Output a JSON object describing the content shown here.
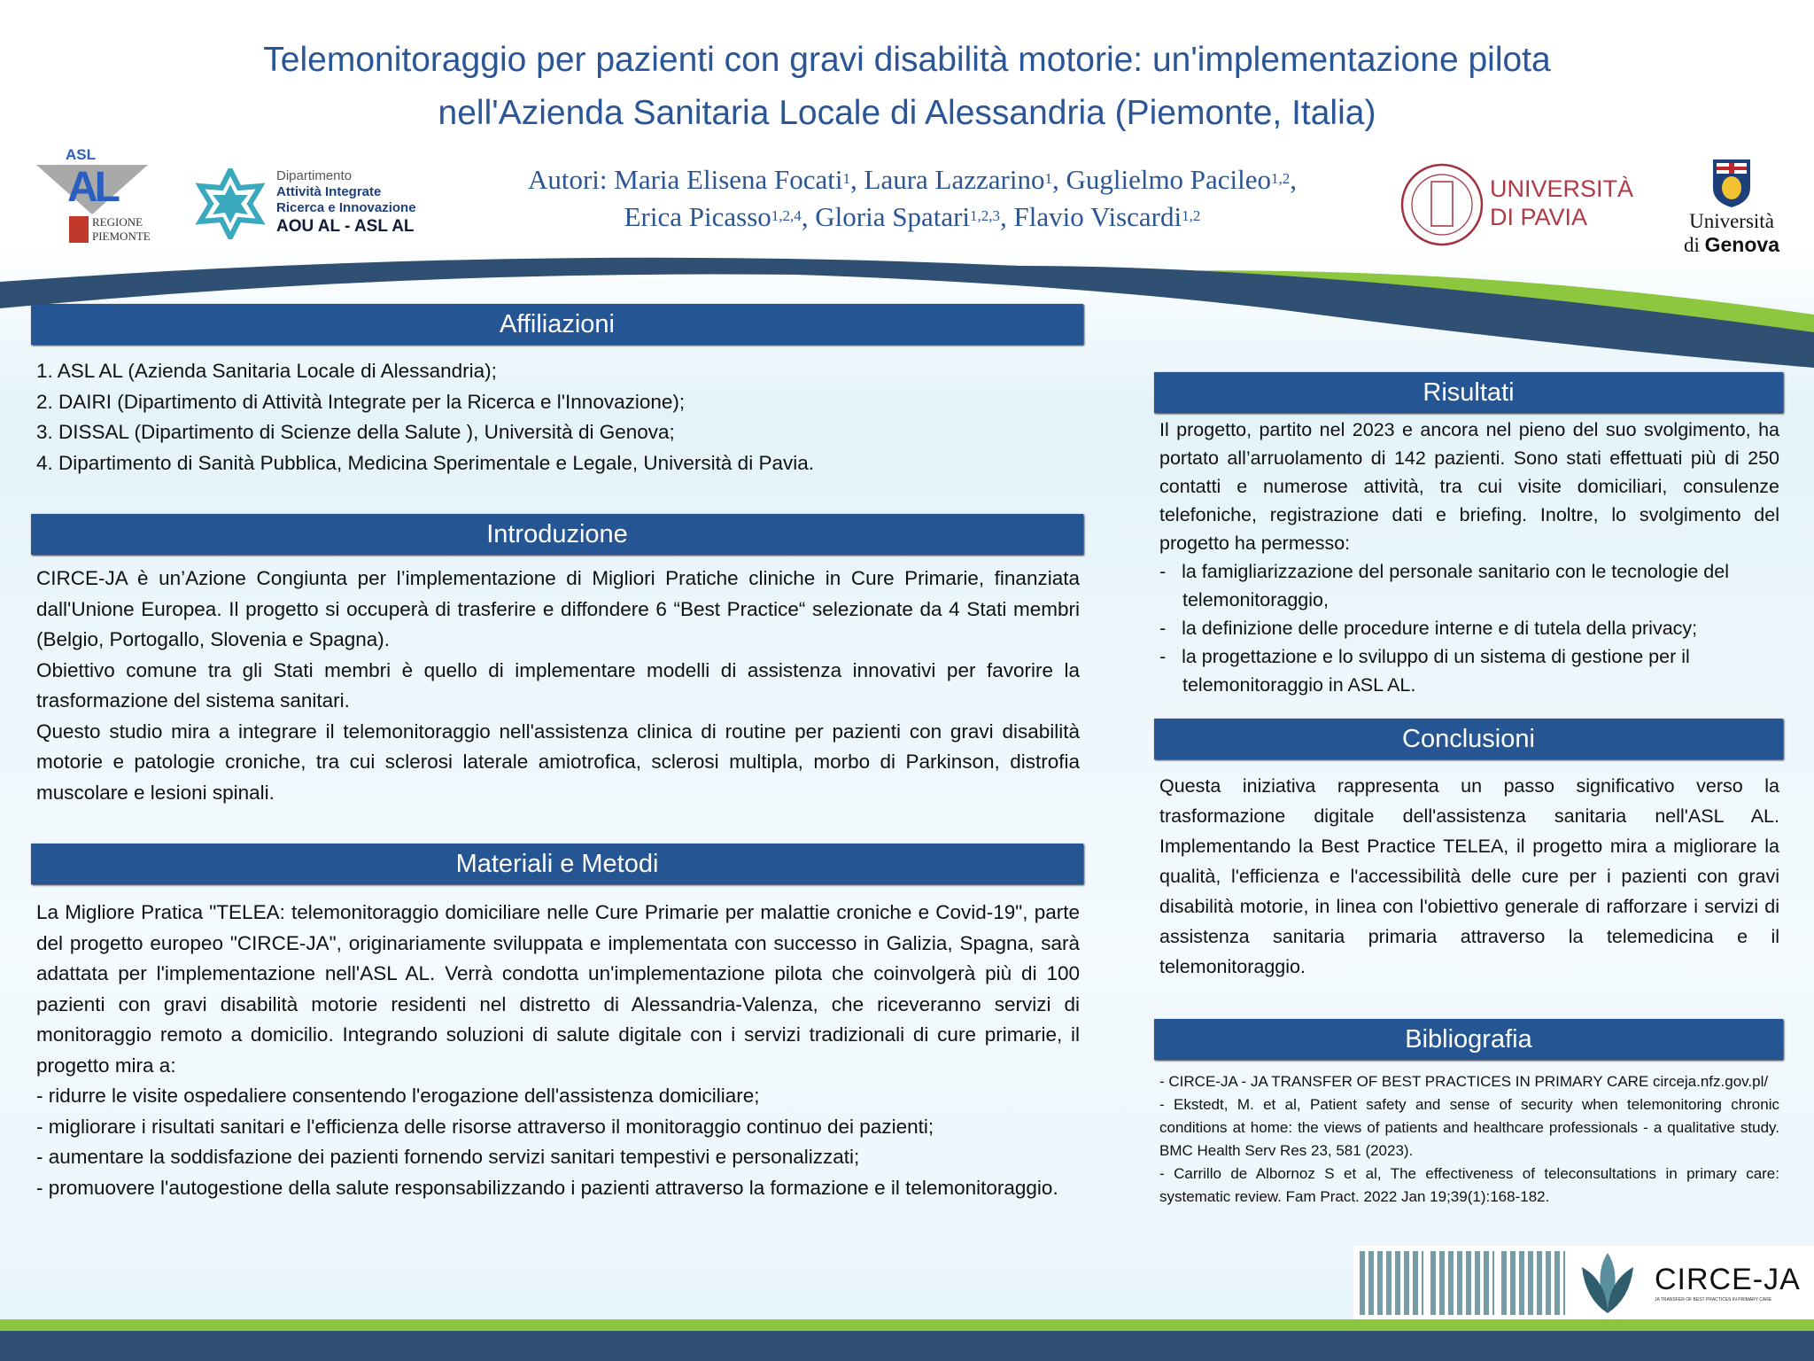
{
  "title": [
    "Telemonitoraggio per pazienti con gravi disabilità motorie: un'implementazione pilota",
    "nell'Azienda Sanitaria Locale di Alessandria (Piemonte, Italia)"
  ],
  "authors": {
    "prefix": "Autori: ",
    "list": [
      {
        "name": "Maria Elisena Focati",
        "sup": "1"
      },
      {
        "name": "Laura Lazzarino",
        "sup": "1"
      },
      {
        "name": "Guglielmo Pacileo",
        "sup": "1,2"
      },
      {
        "name": "Erica Picasso",
        "sup": "1,2,4"
      },
      {
        "name": "Gloria Spatari",
        "sup": "1,2,3"
      },
      {
        "name": "Flavio Viscardi",
        "sup": "1,2"
      }
    ]
  },
  "logos": {
    "asl": {
      "top": "ASL",
      "mark": "AL",
      "sub1": "REGIONE",
      "sub2": "PIEMONTE"
    },
    "dairi": {
      "l1": "Dipartimento",
      "l2": "Attività Integrate",
      "l3": "Ricerca e Innovazione",
      "l4": "AOU AL - ASL AL"
    },
    "pavia": {
      "l1": "UNIVERSITÀ",
      "l2": "DI PAVIA"
    },
    "genova": {
      "l1": "Università",
      "l2a": "di ",
      "l2b": "Genova"
    },
    "circe": {
      "name": "CIRCE-JA",
      "sub": "JA TRANSFER OF BEST PRACTICES IN PRIMARY CARE"
    }
  },
  "colors": {
    "header": "#265593",
    "title": "#2a5596",
    "green": "#8dc63f",
    "wave": "#2f4f73"
  },
  "affiliazioni": {
    "heading": "Affiliazioni",
    "items": [
      "1. ASL AL (Azienda Sanitaria Locale di Alessandria);",
      "2. DAIRI (Dipartimento di Attività Integrate per la Ricerca e l'Innovazione);",
      "3. DISSAL (Dipartimento di Scienze della Salute ), Università di Genova;",
      "4. Dipartimento di Sanità Pubblica, Medicina Sperimentale e Legale, Università di Pavia."
    ]
  },
  "introduzione": {
    "heading": "Introduzione",
    "paragraphs": [
      "CIRCE-JA è un’Azione Congiunta per l’implementazione di Migliori Pratiche cliniche in Cure Primarie, finanziata dall'Unione Europea. Il progetto si occuperà di trasferire e diffondere 6 “Best Practice“ selezionate da 4 Stati membri (Belgio, Portogallo, Slovenia e Spagna).",
      "Obiettivo comune tra gli Stati membri è quello di implementare modelli di assistenza innovativi per favorire la trasformazione del sistema sanitari.",
      "Questo studio mira a integrare il telemonitoraggio nell'assistenza clinica di routine per pazienti con gravi disabilità motorie e patologie croniche, tra cui sclerosi laterale amiotrofica, sclerosi multipla, morbo di Parkinson, distrofia muscolare e lesioni spinali."
    ]
  },
  "materiali": {
    "heading": "Materiali e Metodi",
    "intro": "La Migliore Pratica \"TELEA: telemonitoraggio domiciliare nelle Cure Primarie per malattie croniche e Covid-19\", parte del progetto europeo \"CIRCE-JA\", originariamente sviluppata e implementata con successo in Galizia, Spagna, sarà adattata per l'implementazione nell'ASL AL. Verrà condotta un'implementazione pilota che coinvolgerà più di 100 pazienti con gravi disabilità motorie residenti nel distretto di Alessandria-Valenza, che riceveranno servizi di monitoraggio remoto a domicilio. Integrando soluzioni di salute digitale con i servizi tradizionali di cure primarie, il progetto mira a:",
    "items": [
      "- ridurre le visite ospedaliere consentendo l'erogazione dell'assistenza domiciliare;",
      "- migliorare i risultati sanitari e l'efficienza delle risorse attraverso il monitoraggio continuo dei pazienti;",
      "- aumentare la soddisfazione dei pazienti fornendo servizi sanitari tempestivi e personalizzati;",
      "- promuovere l'autogestione della salute responsabilizzando i pazienti attraverso la formazione e il telemonitoraggio."
    ]
  },
  "risultati": {
    "heading": "Risultati",
    "intro": "Il progetto, partito nel 2023 e ancora nel pieno del suo svolgimento, ha portato all’arruolamento di 142 pazienti. Sono stati effettuati più di 250 contatti e numerose attività, tra cui visite domiciliari, consulenze telefoniche, registrazione dati e briefing. Inoltre, lo svolgimento del progetto ha permesso:",
    "items": [
      "-   la famigliarizzazione del personale sanitario con le tecnologie del telemonitoraggio,",
      "-   la definizione delle procedure interne e di tutela della privacy;",
      "-   la progettazione e lo sviluppo di un sistema di gestione per il telemonitoraggio in ASL AL."
    ]
  },
  "conclusioni": {
    "heading": "Conclusioni",
    "text": "Questa iniziativa rappresenta un passo significativo verso la trasformazione digitale dell'assistenza sanitaria nell'ASL AL. Implementando la Best Practice TELEA, il progetto mira a migliorare la qualità, l'efficienza e l'accessibilità delle cure per i pazienti con gravi disabilità motorie, in linea con l'obiettivo generale di rafforzare i servizi di assistenza sanitaria primaria attraverso la telemedicina e il telemonitoraggio."
  },
  "bibliografia": {
    "heading": "Bibliografia",
    "items": [
      "- CIRCE-JA - JA TRANSFER OF BEST PRACTICES IN PRIMARY CARE circeja.nfz.gov.pl/",
      "- Ekstedt, M. et al, Patient safety and sense of security when telemonitoring chronic conditions at home: the views of patients and healthcare professionals - a qualitative study. BMC Health Serv Res 23, 581 (2023).",
      "- Carrillo de Albornoz S et al, The effectiveness of teleconsultations in primary care: systematic review. Fam Pract. 2022 Jan 19;39(1):168-182."
    ]
  },
  "qr_codes": [
    "globe-icon",
    "calculator-icon",
    "x-icon"
  ]
}
